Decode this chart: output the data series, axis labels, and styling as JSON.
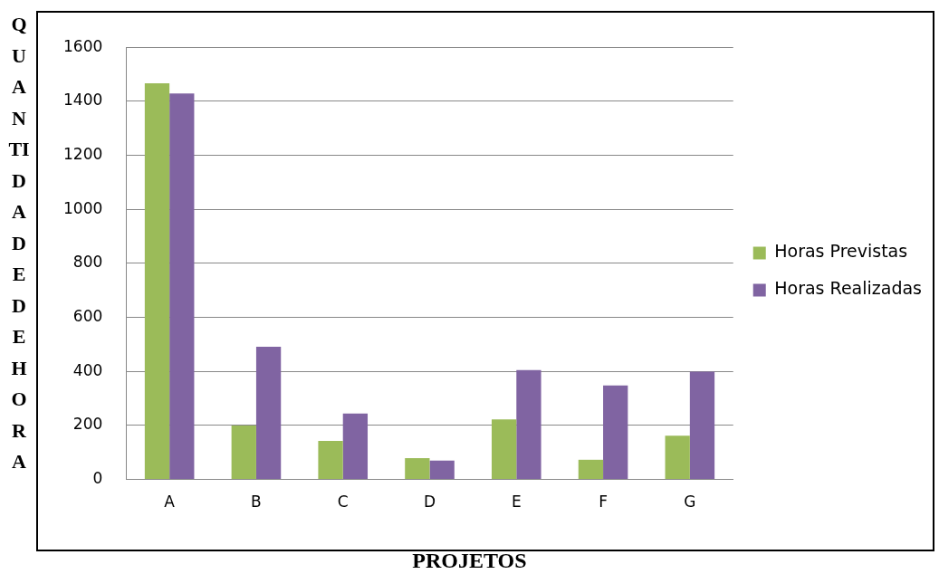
{
  "chart_data": {
    "type": "bar",
    "xlabel": "PROJETOS",
    "ylabel": "QUANTIDADEDEHORA",
    "categories": [
      "A",
      "B",
      "C",
      "D",
      "E",
      "F",
      "G"
    ],
    "series": [
      {
        "name": "Horas Previstas",
        "color": "#9bbb59",
        "values": [
          1467,
          200,
          143,
          79,
          222,
          73,
          162
        ]
      },
      {
        "name": "Horas Realizadas",
        "color": "#8064a2",
        "values": [
          1429,
          491,
          244,
          70,
          405,
          348,
          399
        ]
      }
    ],
    "ylim": [
      0,
      1600
    ],
    "yticks": [
      0,
      200,
      400,
      600,
      800,
      1000,
      1200,
      1400,
      1600
    ],
    "grid": "y",
    "legend": "right"
  }
}
